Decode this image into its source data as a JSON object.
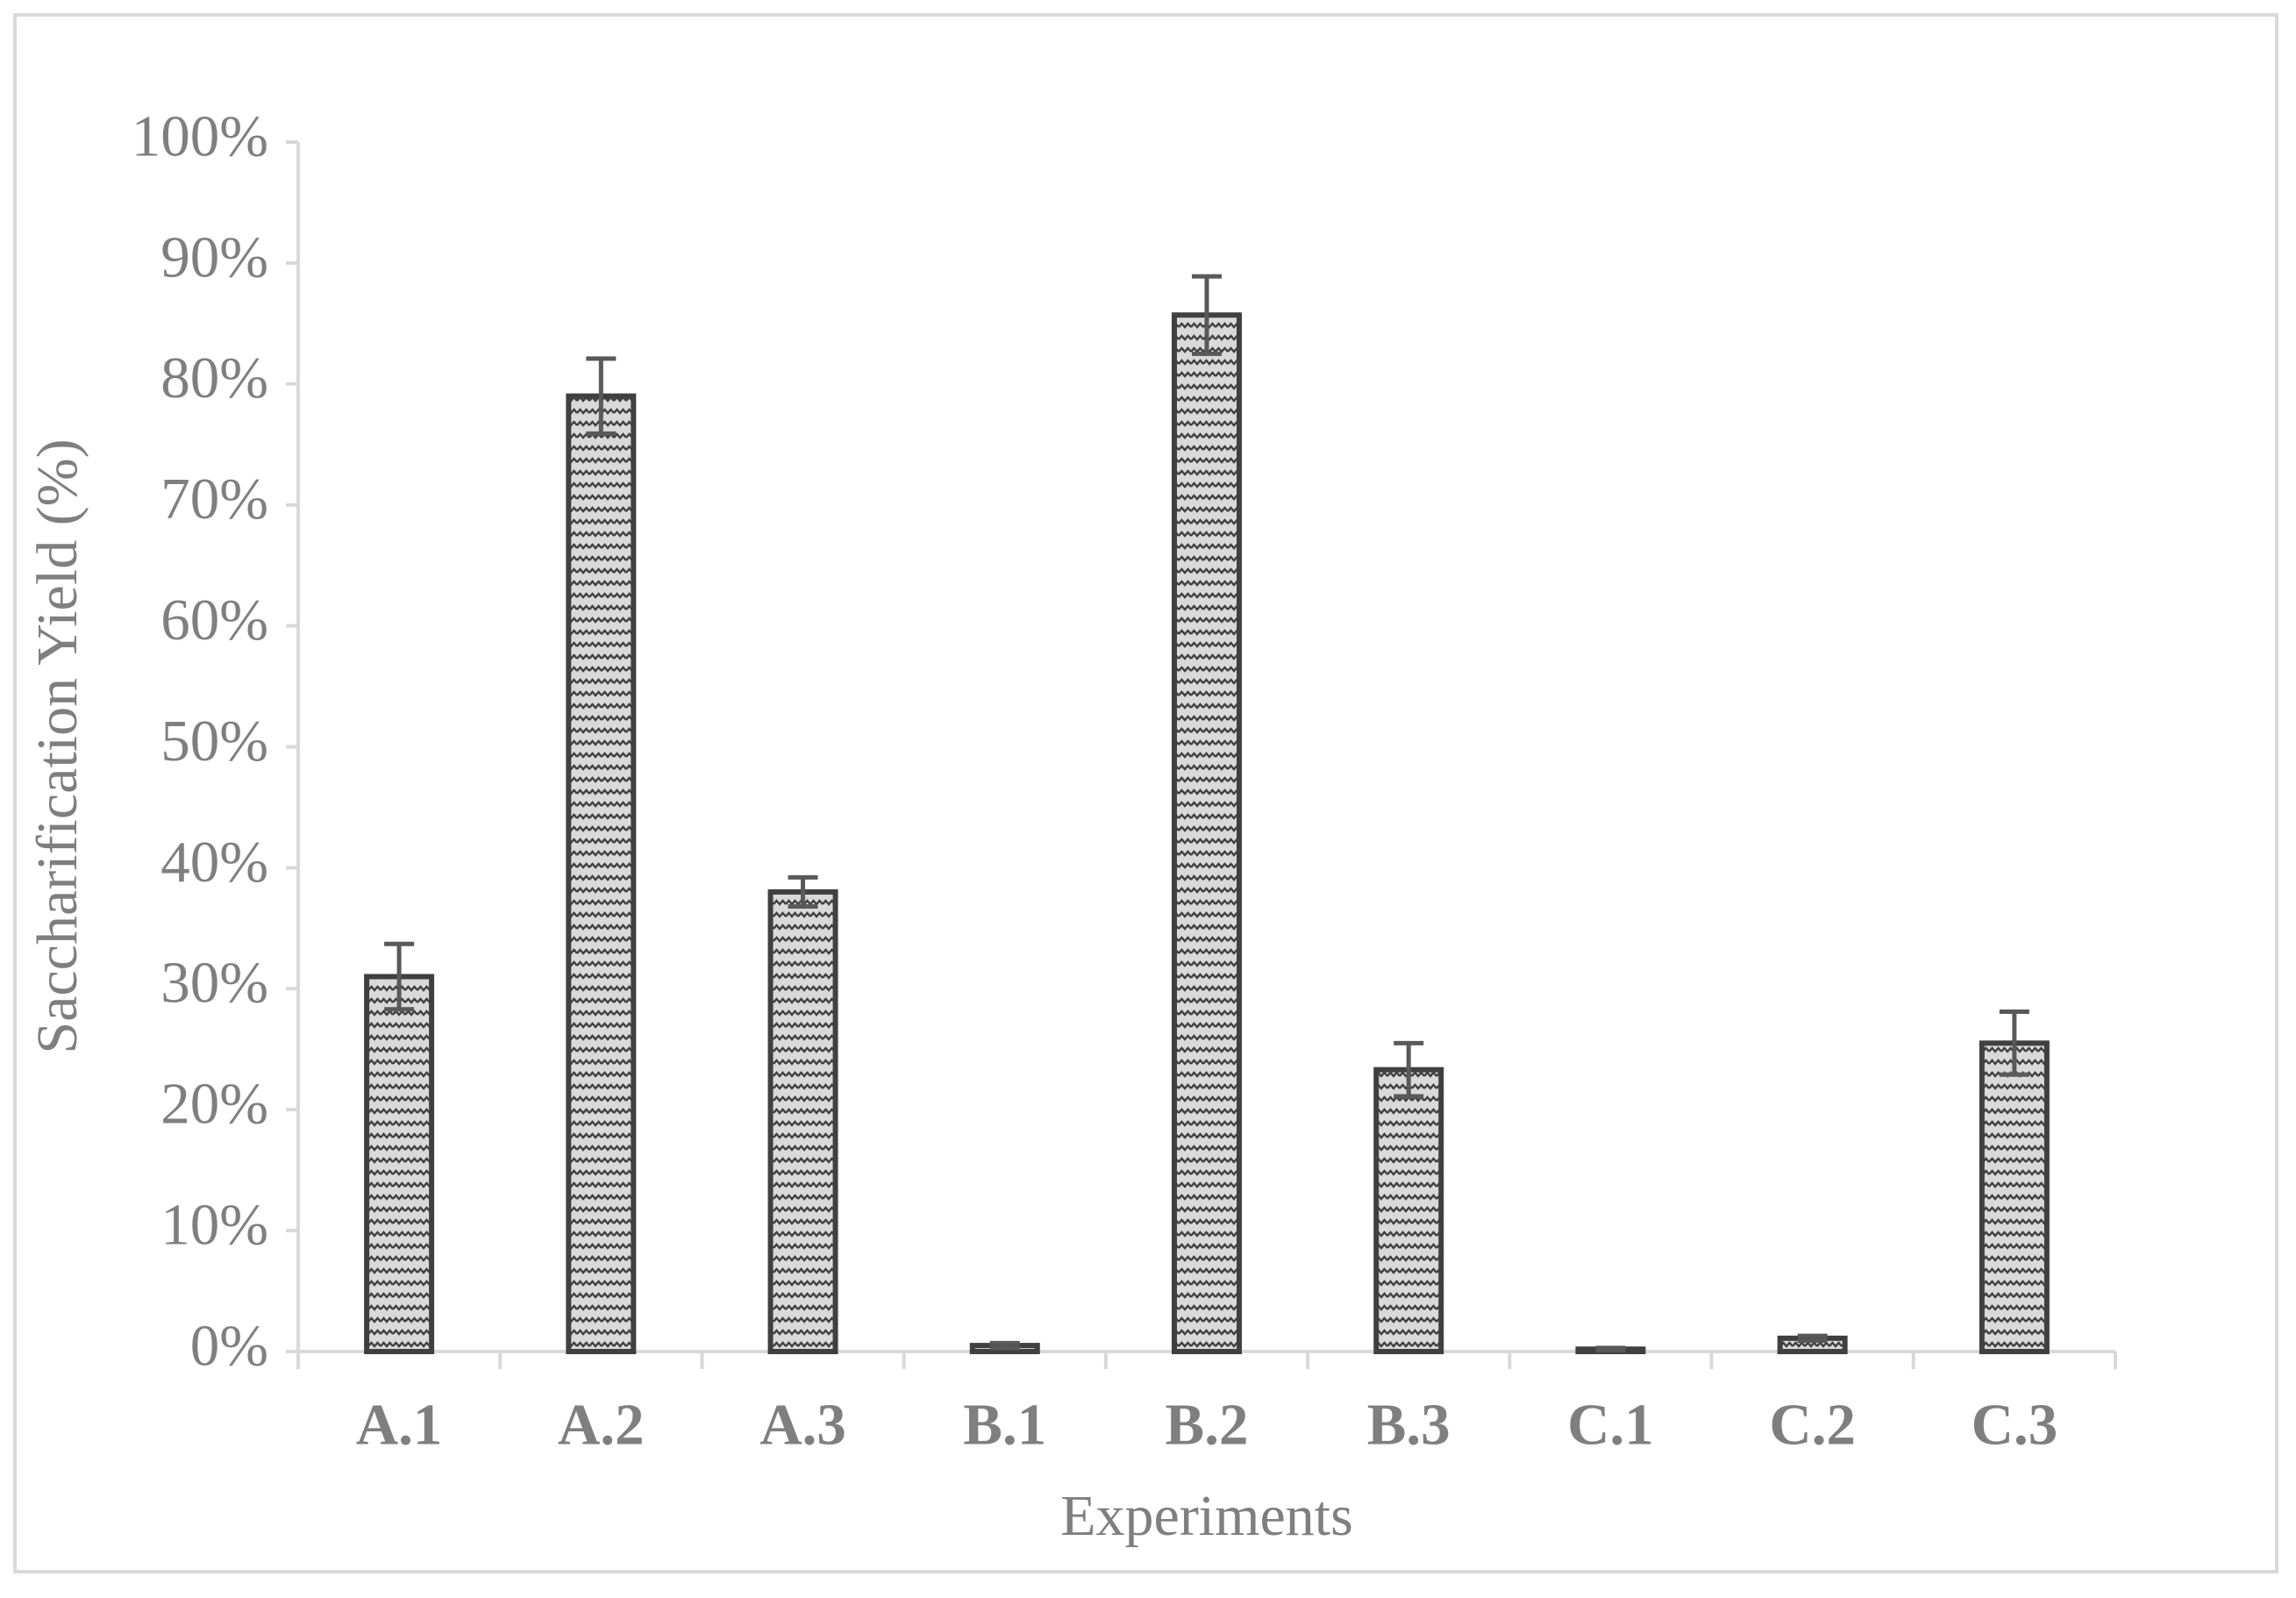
{
  "chart_data": {
    "type": "bar",
    "x_label": "Experiments",
    "y_label": "Saccharification Yield (%)",
    "categories": [
      "A.1",
      "A.2",
      "A.3",
      "B.1",
      "B.2",
      "B.3",
      "C.1",
      "C.2",
      "C.3"
    ],
    "values": [
      31,
      79,
      38,
      0.5,
      85.7,
      23.3,
      0.2,
      1.1,
      25.5
    ],
    "errors": [
      2.7,
      3.1,
      1.2,
      0.2,
      3.2,
      2.2,
      0.1,
      0.2,
      2.6
    ],
    "color": "#d9d9d9",
    "edge_color": "#404040",
    "ylim": [
      0,
      100
    ],
    "yticks": [
      {
        "value": 0,
        "label": "0%"
      },
      {
        "value": 10,
        "label": "10%"
      },
      {
        "value": 20,
        "label": "20%"
      },
      {
        "value": 30,
        "label": "30%"
      },
      {
        "value": 40,
        "label": "40%"
      },
      {
        "value": 50,
        "label": "50%"
      },
      {
        "value": 60,
        "label": "60%"
      },
      {
        "value": 70,
        "label": "70%"
      },
      {
        "value": 80,
        "label": "80%"
      },
      {
        "value": 90,
        "label": "90%"
      },
      {
        "value": 100,
        "label": "100%"
      }
    ],
    "grid": false
  }
}
